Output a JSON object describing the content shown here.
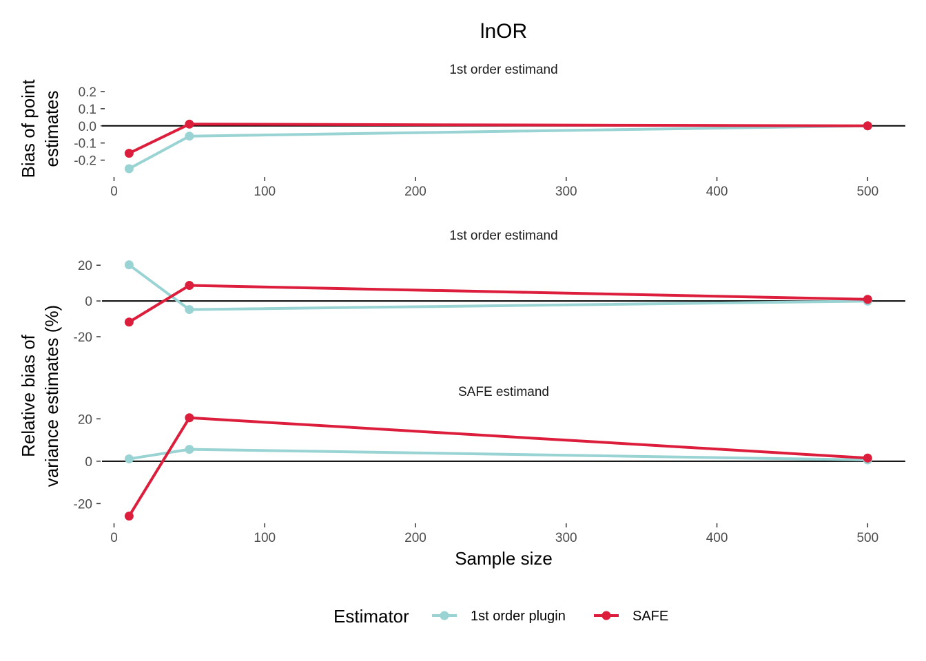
{
  "title": "lnOR",
  "xlabel": "Sample size",
  "colors": {
    "first_order_plugin": "#99d3d3",
    "safe": "#dc1e3c",
    "zero_line": "#000000"
  },
  "legend": {
    "title": "Estimator",
    "position": "bottom",
    "items": [
      {
        "label": "1st order plugin",
        "color": "#99d3d3"
      },
      {
        "label": "SAFE",
        "color": "#dc1e3c"
      }
    ]
  },
  "chart_data": [
    {
      "type": "line",
      "panel_title": "1st order estimand",
      "ylabel": [
        "Bias of point",
        "estimates"
      ],
      "x": [
        10,
        50,
        500
      ],
      "xlim": [
        -8,
        525
      ],
      "ylim": [
        -0.27,
        0.22
      ],
      "xticks": [
        0,
        100,
        200,
        300,
        400,
        500
      ],
      "yticks": [
        -0.2,
        -0.1,
        0.0,
        0.1,
        0.2
      ],
      "ytick_labels": [
        "-0.2",
        "-0.1",
        "0.0",
        "0.1",
        "0.2"
      ],
      "hline": 0,
      "series": [
        {
          "name": "1st order plugin",
          "values": [
            -0.25,
            -0.06,
            0.0
          ]
        },
        {
          "name": "SAFE",
          "values": [
            -0.16,
            0.01,
            0.0
          ]
        }
      ]
    },
    {
      "type": "line",
      "panel_title": "1st order estimand",
      "ylabel": [],
      "x": [
        10,
        50,
        500
      ],
      "xlim": [
        -8,
        525
      ],
      "ylim": [
        -25,
        22
      ],
      "xticks": [],
      "yticks": [
        -20,
        0,
        20
      ],
      "ytick_labels": [
        "-20",
        "0",
        "20"
      ],
      "hline": 0,
      "series": [
        {
          "name": "1st order plugin",
          "values": [
            20.2,
            -4.8,
            -0.1
          ]
        },
        {
          "name": "SAFE",
          "values": [
            -11.8,
            8.7,
            0.9
          ]
        }
      ]
    },
    {
      "type": "line",
      "panel_title": "SAFE estimand",
      "ylabel": [
        "Relative bias of",
        "variance estimates (%)"
      ],
      "x": [
        10,
        50,
        500
      ],
      "xlim": [
        -8,
        525
      ],
      "ylim": [
        -28,
        24
      ],
      "xticks": [
        0,
        100,
        200,
        300,
        400,
        500
      ],
      "yticks": [
        -20,
        0,
        20
      ],
      "ytick_labels": [
        "-20",
        "0",
        "20"
      ],
      "hline": 0,
      "series": [
        {
          "name": "1st order plugin",
          "values": [
            1.1,
            5.6,
            0.6
          ]
        },
        {
          "name": "SAFE",
          "values": [
            -25.9,
            20.5,
            1.5
          ]
        }
      ]
    }
  ]
}
